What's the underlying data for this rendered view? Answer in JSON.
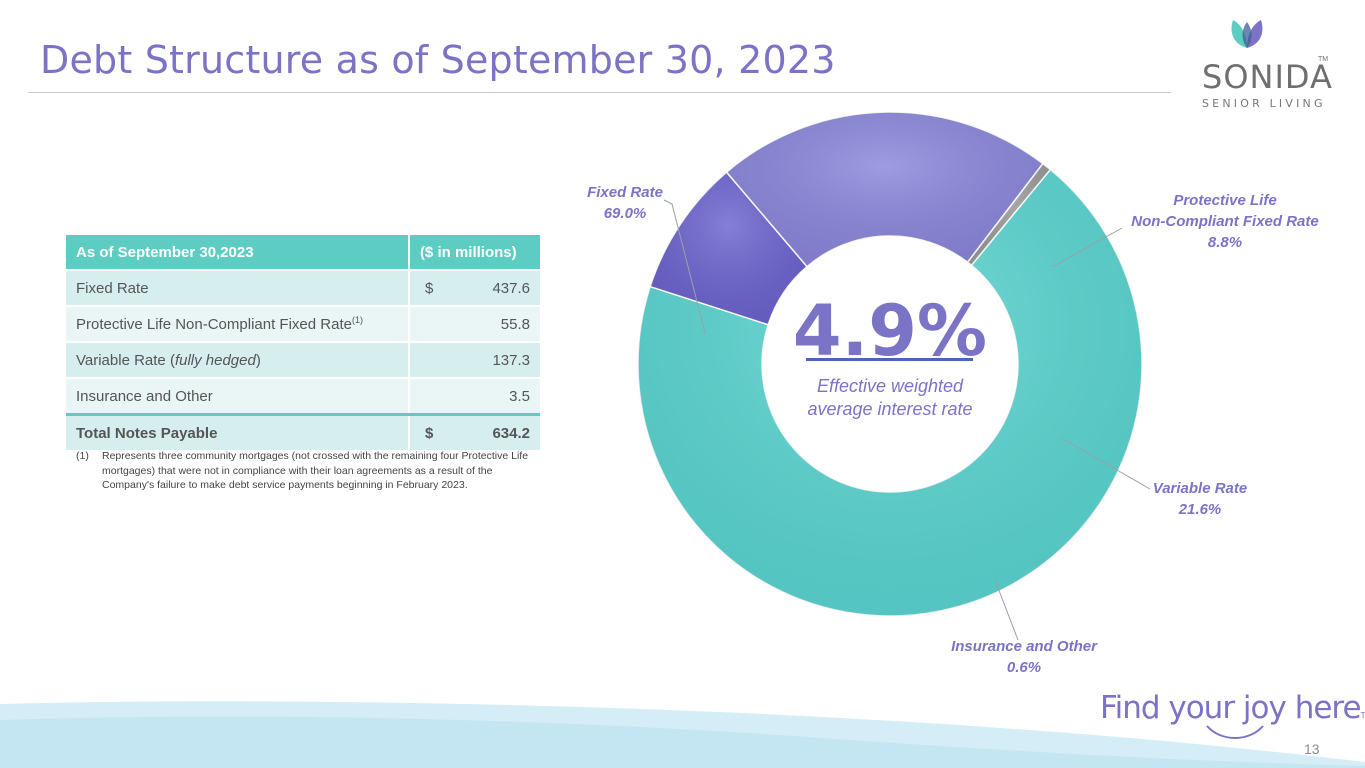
{
  "title": "Debt Structure as of September 30, 2023",
  "logo": {
    "word": "SONIDA",
    "tm": "TM",
    "sub": "SENIOR LIVING"
  },
  "table": {
    "header": [
      "As of September 30,2023",
      "($ in millions)"
    ],
    "rows": [
      {
        "label": "Fixed Rate",
        "dollar": "$",
        "value": "437.6"
      },
      {
        "label": "Protective Life Non-Compliant Fixed Rate",
        "sup": "(1)",
        "value": "55.8"
      },
      {
        "label_prefix": "Variable Rate (",
        "label_em": "fully hedged",
        "label_suffix": ")",
        "value": "137.3"
      },
      {
        "label": "Insurance and Other",
        "value": "3.5"
      }
    ],
    "total": {
      "label": "Total Notes Payable",
      "dollar": "$",
      "value": "634.2"
    }
  },
  "footnote": {
    "num": "(1)",
    "text": "Represents three community mortgages (not crossed with the remaining four Protective Life mortgages) that were not in compliance with  their loan agreements as a result of the Company's  failure to make debt service payments beginning in February 2023."
  },
  "chart_data": {
    "type": "pie",
    "variant": "donut",
    "categories": [
      "Fixed Rate",
      "Protective Life Non-Compliant Fixed Rate",
      "Variable Rate",
      "Insurance and Other"
    ],
    "values": [
      69.0,
      8.8,
      21.6,
      0.6
    ],
    "labels": [
      [
        "Fixed Rate",
        "69.0%"
      ],
      [
        "Protective Life",
        "Non-Compliant Fixed Rate",
        "8.8%"
      ],
      [
        "Variable Rate",
        "21.6%"
      ],
      [
        "Insurance and Other",
        "0.6%"
      ]
    ],
    "colors": [
      "#5ad6d2",
      "#6b63cf",
      "#8a86dc",
      "#9a9a9a"
    ],
    "center_value": "4.9%",
    "center_caption": [
      "Effective weighted",
      "average interest rate"
    ]
  },
  "tagline": {
    "text": "Find your joy here",
    "tm": "TM"
  },
  "page_number": "13"
}
